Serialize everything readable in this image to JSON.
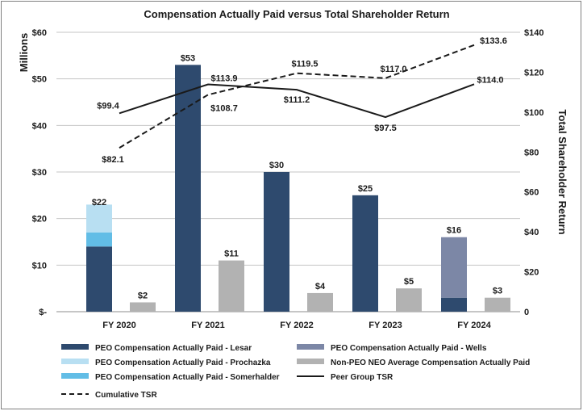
{
  "chart_data": {
    "type": "bar",
    "title": "Compensation Actually Paid versus Total Shareholder Return",
    "ylabel": "Millions",
    "y2label": "Total Shareholder Return",
    "ylim": [
      0,
      60
    ],
    "y2lim": [
      0,
      140
    ],
    "yticks": [
      "$-",
      "$10",
      "$20",
      "$30",
      "$40",
      "$50",
      "$60"
    ],
    "y2ticks": [
      "0",
      "$20",
      "$40",
      "$60",
      "$80",
      "$100",
      "$120",
      "$140"
    ],
    "categories": [
      "FY 2020",
      "FY 2021",
      "FY 2022",
      "FY 2023",
      "FY 2024"
    ],
    "stacked_series": [
      {
        "name": "PEO Compensation Actually Paid - Lesar",
        "color": "#2e4a6e",
        "values": [
          14,
          53,
          30,
          25,
          3
        ]
      },
      {
        "name": "PEO Compensation Actually Paid - Somerhalder",
        "color": "#62bde6",
        "values": [
          3,
          0,
          0,
          0,
          0
        ]
      },
      {
        "name": "PEO Compensation Actually Paid - Prochazka",
        "color": "#b8dff2",
        "values": [
          6,
          0,
          0,
          0,
          0
        ]
      },
      {
        "name": "PEO Compensation Actually Paid - Wells",
        "color": "#7c87a6",
        "values": [
          0,
          0,
          0,
          0,
          13
        ]
      }
    ],
    "stack_totals": [
      22,
      53,
      30,
      25,
      16
    ],
    "stack_labels": [
      "$22",
      "$53",
      "$30",
      "$25",
      "$16"
    ],
    "neo_series": {
      "name": "Non-PEO NEO Average Compensation Actually Paid",
      "color": "#b2b2b2",
      "values": [
        2,
        11,
        4,
        5,
        3
      ],
      "labels": [
        "$2",
        "$11",
        "$4",
        "$5",
        "$3"
      ]
    },
    "line_series": [
      {
        "name": "Peer Group TSR",
        "color": "#1a1a1a",
        "style": "solid",
        "axis": "right",
        "values": [
          99.4,
          113.9,
          111.2,
          97.5,
          114.0
        ],
        "labels": [
          "$99.4",
          "$113.9",
          "$111.2",
          "$97.5",
          "$114.0"
        ]
      },
      {
        "name": "Cumulative TSR",
        "color": "#1a1a1a",
        "style": "dashed",
        "axis": "right",
        "values": [
          82.1,
          108.7,
          119.5,
          117.0,
          133.6
        ],
        "labels": [
          "$82.1",
          "$108.7",
          "$119.5",
          "$117.0",
          "$133.6"
        ]
      }
    ],
    "legend": {
      "placement": "bottom",
      "items": [
        {
          "label": "PEO Compensation Actually Paid - Lesar",
          "kind": "bar",
          "color": "#2e4a6e"
        },
        {
          "label": "PEO Compensation Actually Paid - Wells",
          "kind": "bar",
          "color": "#7c87a6"
        },
        {
          "label": "PEO Compensation Actually Paid - Prochazka",
          "kind": "bar",
          "color": "#b8dff2"
        },
        {
          "label": "Non-PEO NEO Average Compensation Actually Paid",
          "kind": "bar",
          "color": "#b2b2b2"
        },
        {
          "label": "PEO Compensation Actually Paid - Somerhalder",
          "kind": "bar",
          "color": "#62bde6"
        },
        {
          "label": "Peer Group TSR",
          "kind": "line-solid",
          "color": "#1a1a1a"
        },
        {
          "label": "Cumulative TSR",
          "kind": "line-dashed",
          "color": "#1a1a1a"
        }
      ]
    }
  }
}
